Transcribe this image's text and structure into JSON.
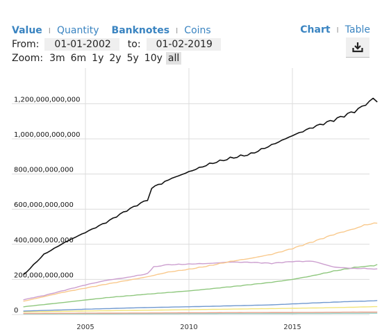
{
  "toolbar": {
    "value_label": "Value",
    "quantity_label": "Quantity",
    "banknotes_label": "Banknotes",
    "coins_label": "Coins",
    "chart_label": "Chart",
    "table_label": "Table",
    "download_icon": "download-icon"
  },
  "date_range": {
    "from_label": "From:",
    "from_value": "01-01-2002",
    "to_label": "to:",
    "to_value": "01-02-2019"
  },
  "zoom": {
    "label": "Zoom:",
    "options": [
      "3m",
      "6m",
      "1y",
      "2y",
      "5y",
      "10y",
      "all"
    ],
    "selected": "all"
  },
  "chart_data": {
    "type": "line",
    "title": "",
    "xlabel": "",
    "ylabel": "",
    "xlim": [
      2002,
      2019.1
    ],
    "ylim": [
      0,
      1300000000000
    ],
    "x_ticks": [
      2005,
      2010,
      2015
    ],
    "y_ticks": [
      {
        "value": 0,
        "label": "0"
      },
      {
        "value": 200000000000,
        "label": "200,000,000,000"
      },
      {
        "value": 400000000000,
        "label": "400,000,000,000"
      },
      {
        "value": 600000000000,
        "label": "600,000,000,000"
      },
      {
        "value": 800000000000,
        "label": "800,000,000,000"
      },
      {
        "value": 1000000000000,
        "label": "1,000,000,000,000"
      },
      {
        "value": 1200000000000,
        "label": "1,200,000,000,000"
      }
    ],
    "grid": true,
    "series": [
      {
        "color": "#111111",
        "points": [
          [
            2002.0,
            221000000000.0
          ],
          [
            2003.0,
            340000000000.0
          ],
          [
            2004.0,
            410000000000.0
          ],
          [
            2005.0,
            470000000000.0
          ],
          [
            2006.0,
            530000000000.0
          ],
          [
            2007.0,
            600000000000.0
          ],
          [
            2008.0,
            660000000000.0
          ],
          [
            2008.2,
            730000000000.0
          ],
          [
            2009.0,
            770000000000.0
          ],
          [
            2010.0,
            810000000000.0
          ],
          [
            2011.0,
            850000000000.0
          ],
          [
            2012.0,
            880000000000.0
          ],
          [
            2013.0,
            905000000000.0
          ],
          [
            2014.0,
            960000000000.0
          ],
          [
            2015.0,
            1020000000000.0
          ],
          [
            2016.0,
            1075000000000.0
          ],
          [
            2017.0,
            1120000000000.0
          ],
          [
            2018.0,
            1170000000000.0
          ],
          [
            2018.9,
            1230000000000.0
          ],
          [
            2019.1,
            1210000000000.0
          ]
        ]
      },
      {
        "color": "#f9c98c",
        "points": [
          [
            2002.0,
            75000000000.0
          ],
          [
            2004.0,
            130000000000.0
          ],
          [
            2006.0,
            175000000000.0
          ],
          [
            2008.0,
            215000000000.0
          ],
          [
            2009.0,
            240000000000.0
          ],
          [
            2010.0,
            255000000000.0
          ],
          [
            2011.0,
            275000000000.0
          ],
          [
            2012.0,
            300000000000.0
          ],
          [
            2013.0,
            320000000000.0
          ],
          [
            2014.0,
            345000000000.0
          ],
          [
            2015.0,
            380000000000.0
          ],
          [
            2016.0,
            420000000000.0
          ],
          [
            2017.0,
            460000000000.0
          ],
          [
            2018.0,
            490000000000.0
          ],
          [
            2019.1,
            520000000000.0
          ]
        ]
      },
      {
        "color": "#cc9fcf",
        "points": [
          [
            2002.0,
            85000000000.0
          ],
          [
            2003.0,
            110000000000.0
          ],
          [
            2004.0,
            140000000000.0
          ],
          [
            2005.0,
            170000000000.0
          ],
          [
            2006.0,
            195000000000.0
          ],
          [
            2007.0,
            210000000000.0
          ],
          [
            2008.0,
            230000000000.0
          ],
          [
            2008.3,
            270000000000.0
          ],
          [
            2009.0,
            280000000000.0
          ],
          [
            2010.0,
            285000000000.0
          ],
          [
            2011.0,
            290000000000.0
          ],
          [
            2012.0,
            300000000000.0
          ],
          [
            2013.0,
            300000000000.0
          ],
          [
            2014.0,
            295000000000.0
          ],
          [
            2015.0,
            305000000000.0
          ],
          [
            2016.0,
            305000000000.0
          ],
          [
            2017.0,
            270000000000.0
          ],
          [
            2018.0,
            260000000000.0
          ],
          [
            2019.1,
            260000000000.0
          ]
        ]
      },
      {
        "color": "#8ec77d",
        "points": [
          [
            2002.0,
            45000000000.0
          ],
          [
            2004.0,
            70000000000.0
          ],
          [
            2006.0,
            95000000000.0
          ],
          [
            2008.0,
            115000000000.0
          ],
          [
            2010.0,
            135000000000.0
          ],
          [
            2012.0,
            160000000000.0
          ],
          [
            2014.0,
            185000000000.0
          ],
          [
            2015.0,
            200000000000.0
          ],
          [
            2016.0,
            220000000000.0
          ],
          [
            2017.0,
            245000000000.0
          ],
          [
            2018.0,
            265000000000.0
          ],
          [
            2019.1,
            285000000000.0
          ]
        ]
      },
      {
        "color": "#6f98cf",
        "points": [
          [
            2002.0,
            20000000000.0
          ],
          [
            2005.0,
            30000000000.0
          ],
          [
            2008.0,
            40000000000.0
          ],
          [
            2010.0,
            45000000000.0
          ],
          [
            2012.0,
            50000000000.0
          ],
          [
            2014.0,
            55000000000.0
          ],
          [
            2016.0,
            65000000000.0
          ],
          [
            2018.0,
            75000000000.0
          ],
          [
            2019.1,
            80000000000.0
          ]
        ]
      },
      {
        "color": "#f2e47a",
        "points": [
          [
            2002.0,
            15000000000.0
          ],
          [
            2005.0,
            20000000000.0
          ],
          [
            2010.0,
            28000000000.0
          ],
          [
            2015.0,
            35000000000.0
          ],
          [
            2019.1,
            45000000000.0
          ]
        ]
      },
      {
        "color": "#e9a089",
        "points": [
          [
            2002.0,
            6000000000.0
          ],
          [
            2010.0,
            10000000000.0
          ],
          [
            2019.1,
            14000000000.0
          ]
        ]
      },
      {
        "color": "#9ad3c9",
        "points": [
          [
            2002.0,
            3000000000.0
          ],
          [
            2010.0,
            5000000000.0
          ],
          [
            2019.1,
            7000000000.0
          ]
        ]
      }
    ]
  }
}
